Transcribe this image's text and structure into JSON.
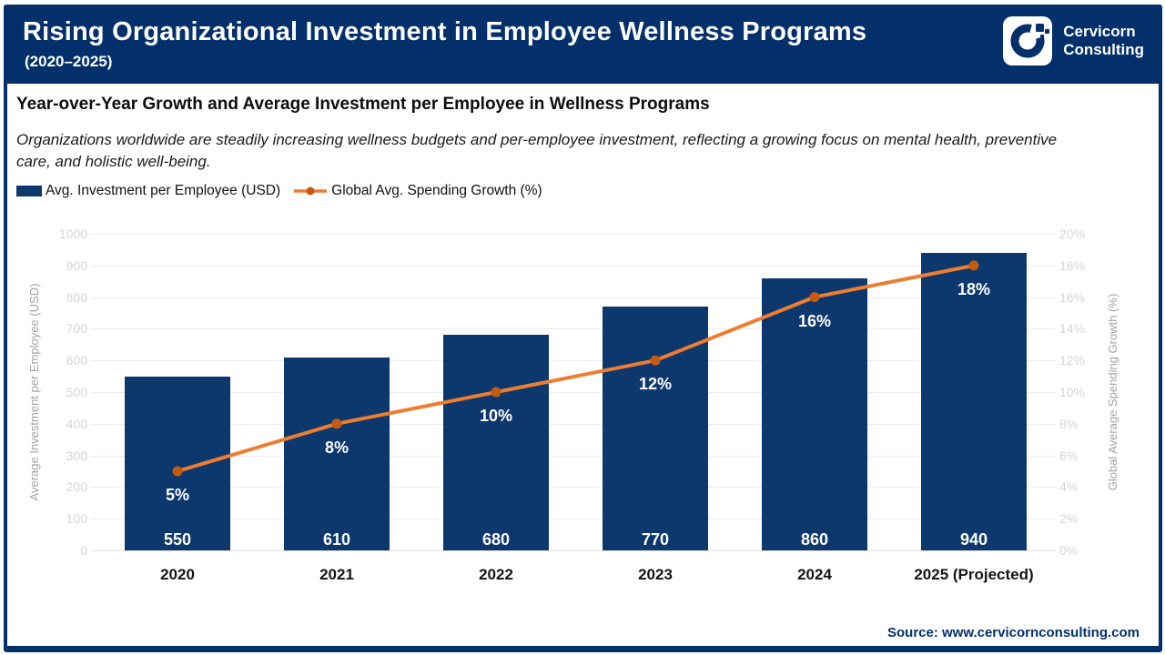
{
  "header": {
    "title": "Rising Organizational Investment in Employee Wellness Programs",
    "subtitle": "(2020–2025)",
    "logo": {
      "line1": "Cervicorn",
      "line2": "Consulting"
    }
  },
  "section": {
    "heading": "Year-over-Year Growth and Average Investment per Employee in Wellness Programs",
    "description": "Organizations worldwide are steadily increasing wellness budgets and per-employee investment, reflecting a growing focus on mental health, preventive care, and holistic well-being."
  },
  "chart_data": {
    "type": "bar+line",
    "categories": [
      "2020",
      "2021",
      "2022",
      "2023",
      "2024",
      "2025 (Projected)"
    ],
    "series": [
      {
        "name": "Avg. Investment per Employee (USD)",
        "type": "bar",
        "axis": "left",
        "values": [
          550,
          610,
          680,
          770,
          860,
          940
        ],
        "labels": [
          "550",
          "610",
          "680",
          "770",
          "860",
          "940"
        ],
        "color": "#0d386d"
      },
      {
        "name": "Global Avg. Spending Growth (%)",
        "type": "line",
        "axis": "right",
        "values": [
          5,
          8,
          10,
          12,
          16,
          18
        ],
        "labels": [
          "5%",
          "8%",
          "10%",
          "12%",
          "16%",
          "18%"
        ],
        "color": "#ED7D31",
        "marker_color": "#C55A11"
      }
    ],
    "left_axis": {
      "label": "Average Investment per Employee (USD)",
      "min": 0,
      "max": 1000,
      "step": 100
    },
    "right_axis": {
      "label": "Global Average Spending Growth (%)",
      "min": 0,
      "max": 20,
      "step": 2,
      "suffix": "%"
    },
    "grid": true,
    "legend_position": "top-left"
  },
  "footer": {
    "source": "Source: www.cervicornconsulting.com"
  },
  "colors": {
    "navy": "#03306b",
    "bar_navy": "#0d386d",
    "line_orange": "#ED7D31",
    "marker_orange": "#C55A11",
    "gridline": "#ececec",
    "tick_text": "#d4d4d4",
    "axis_title_text": "#a3a3a3"
  }
}
